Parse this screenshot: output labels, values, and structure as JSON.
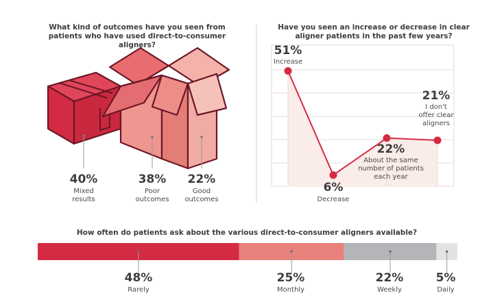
{
  "colors": {
    "red": "#d42b44",
    "salmon": "#e8807c",
    "light_salmon": "#f0aca4",
    "gray": "#b3b5b8",
    "light_gray": "#e3e3e3",
    "dark_red": "#7d1a2c",
    "pale": "#faece8"
  },
  "chart_data": [
    {
      "type": "pie",
      "title": "What kind of outcomes have you seen from patients who have used direct-to-consumer aligners?",
      "categories": [
        "Mixed results",
        "Poor outcomes",
        "Good outcomes"
      ],
      "values": [
        40,
        38,
        22
      ],
      "value_labels": [
        "40%",
        "38%",
        "22%"
      ],
      "label_lines": [
        [
          "Mixed",
          "results"
        ],
        [
          "Poor",
          "outcomes"
        ],
        [
          "Good",
          "outcomes"
        ]
      ]
    },
    {
      "type": "line",
      "title": "Have you seen an increase or decrease in clear aligner patients in the past few years?",
      "categories": [
        "Increase",
        "Decrease",
        "About the same number of patients each year",
        "I don't offer clear aligners"
      ],
      "values": [
        51,
        6,
        22,
        21
      ],
      "value_labels": [
        "51%",
        "6%",
        "22%",
        "21%"
      ],
      "label_lines": [
        [
          "Increase"
        ],
        [
          "Decrease"
        ],
        [
          "About the same",
          "number of patients",
          "each year"
        ],
        [
          "I don't",
          "offer clear",
          "aligners"
        ]
      ]
    },
    {
      "type": "bar",
      "orientation": "horizontal-stacked",
      "title": "How often do patients ask about the various direct-to-consumer aligners available?",
      "categories": [
        "Rarely",
        "Monthly",
        "Weekly",
        "Daily"
      ],
      "values": [
        48,
        25,
        22,
        5
      ],
      "value_labels": [
        "48%",
        "25%",
        "22%",
        "5%"
      ]
    }
  ]
}
